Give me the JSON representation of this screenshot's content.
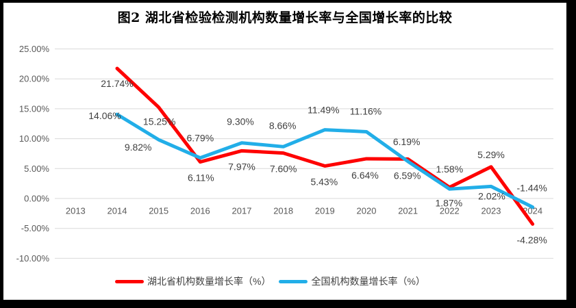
{
  "chart_data": {
    "type": "line",
    "title": "图2 湖北省检验检测机构数量增长率与全国增长率的比较",
    "categories": [
      "2013",
      "2014",
      "2015",
      "2016",
      "2017",
      "2018",
      "2019",
      "2020",
      "2021",
      "2022",
      "2023",
      "2024"
    ],
    "y_axis": {
      "min": -10,
      "max": 25,
      "step": 5,
      "tick_values": [
        25,
        20,
        15,
        10,
        5,
        0,
        -5,
        -10
      ],
      "tick_labels": [
        "25.00%",
        "20.00%",
        "15.00%",
        "10.00%",
        "5.00%",
        "0.00%",
        "-5.00%",
        "-10.00%"
      ]
    },
    "series": [
      {
        "name": "湖北省机构数量增长率（%）",
        "color": "#FE0000",
        "values": [
          null,
          21.74,
          15.25,
          6.11,
          7.97,
          7.6,
          5.43,
          6.64,
          6.59,
          1.87,
          5.29,
          -4.28
        ],
        "labels": [
          null,
          "21.74%",
          "15.25%",
          "6.11%",
          "7.97%",
          "7.60%",
          "5.43%",
          "6.64%",
          "6.59%",
          "1.87%",
          "5.29%",
          "-4.28%"
        ],
        "label_offsets": [
          null,
          [
            0,
            22
          ],
          [
            1,
            21
          ],
          [
            1,
            23
          ],
          [
            0,
            23
          ],
          [
            0,
            23
          ],
          [
            -1,
            23
          ],
          [
            -2,
            24
          ],
          [
            -1,
            24
          ],
          [
            -1,
            23
          ],
          [
            0,
            -18
          ],
          [
            -1,
            23
          ]
        ]
      },
      {
        "name": "全国机构数量增长率（%）",
        "color": "#22AEE8",
        "values": [
          null,
          14.06,
          9.82,
          6.79,
          9.3,
          8.66,
          11.49,
          11.16,
          6.19,
          1.58,
          2.02,
          -1.44
        ],
        "labels": [
          null,
          "14.06%",
          "9.82%",
          "6.79%",
          "9.30%",
          "8.66%",
          "11.49%",
          "11.16%",
          "6.19%",
          "1.58%",
          "2.02%",
          "-1.44%"
        ],
        "label_offsets": [
          null,
          [
            -18,
            2
          ],
          [
            -30,
            11
          ],
          [
            0,
            -29
          ],
          [
            -2,
            -31
          ],
          [
            -1,
            -31
          ],
          [
            -2,
            -29
          ],
          [
            -1,
            -30
          ],
          [
            -2,
            -29
          ],
          [
            0,
            -29
          ],
          [
            1,
            14
          ],
          [
            -1,
            -28
          ]
        ]
      }
    ],
    "grid": true,
    "legend_position": "bottom",
    "colors": {
      "gridline": "#D9D9D9",
      "axis_text": "#595959",
      "data_label": "#3F3F3F",
      "title_text": "#000000",
      "frame_border": "#000000",
      "background": "#FFFFFF"
    }
  }
}
